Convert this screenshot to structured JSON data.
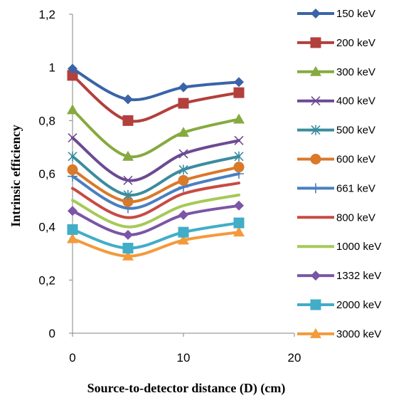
{
  "chart_data": {
    "type": "line",
    "xlabel": "Source-to-detector distance (D) (cm)",
    "ylabel": "Intrinsic efficiency",
    "xlim": [
      0,
      20
    ],
    "ylim": [
      0,
      1.2
    ],
    "x_ticks": [
      "0",
      "10",
      "20"
    ],
    "y_ticks": [
      "0",
      "0,2",
      "0,4",
      "0,6",
      "0,8",
      "1",
      "1,2"
    ],
    "grid": false,
    "legend_position": "right",
    "x": [
      0,
      5,
      10,
      15
    ],
    "series": [
      {
        "name": "150 keV",
        "color": "#3A64A8",
        "marker": "diamond",
        "values": [
          0.995,
          0.88,
          0.925,
          0.945
        ]
      },
      {
        "name": "200 keV",
        "color": "#B2403C",
        "marker": "square",
        "values": [
          0.97,
          0.8,
          0.865,
          0.905
        ]
      },
      {
        "name": "300 keV",
        "color": "#86AA3F",
        "marker": "triangle",
        "values": [
          0.84,
          0.665,
          0.755,
          0.805
        ]
      },
      {
        "name": "400 keV",
        "color": "#6C4A92",
        "marker": "x",
        "values": [
          0.735,
          0.575,
          0.675,
          0.725
        ]
      },
      {
        "name": "500 keV",
        "color": "#3B8C9E",
        "marker": "star",
        "values": [
          0.665,
          0.52,
          0.615,
          0.665
        ]
      },
      {
        "name": "600 keV",
        "color": "#D9792A",
        "marker": "circle",
        "values": [
          0.615,
          0.495,
          0.575,
          0.625
        ]
      },
      {
        "name": "661 keV",
        "color": "#4A7FC1",
        "marker": "plus",
        "values": [
          0.59,
          0.47,
          0.55,
          0.6
        ]
      },
      {
        "name": "800 keV",
        "color": "#C84A44",
        "marker": "none",
        "values": [
          0.545,
          0.435,
          0.525,
          0.565
        ]
      },
      {
        "name": "1000 keV",
        "color": "#A6C958",
        "marker": "none",
        "values": [
          0.5,
          0.4,
          0.48,
          0.52
        ]
      },
      {
        "name": "1332 keV",
        "color": "#7B55A6",
        "marker": "diamond",
        "values": [
          0.46,
          0.37,
          0.445,
          0.48
        ]
      },
      {
        "name": "2000 keV",
        "color": "#41ADC7",
        "marker": "square",
        "values": [
          0.39,
          0.32,
          0.38,
          0.415
        ]
      },
      {
        "name": "3000 keV",
        "color": "#F39A3B",
        "marker": "triangle",
        "values": [
          0.355,
          0.29,
          0.35,
          0.38
        ]
      }
    ]
  }
}
